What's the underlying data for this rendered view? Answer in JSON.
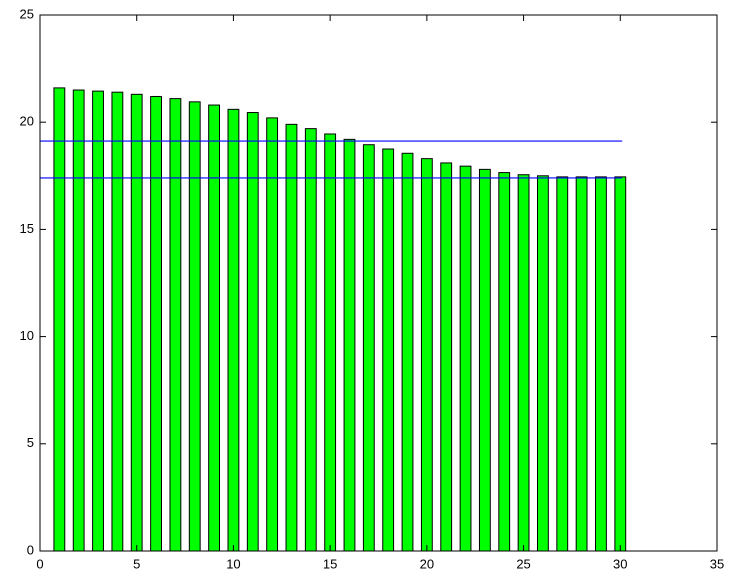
{
  "chart_data": {
    "type": "bar",
    "x": [
      1,
      2,
      3,
      4,
      5,
      6,
      7,
      8,
      9,
      10,
      11,
      12,
      13,
      14,
      15,
      16,
      17,
      18,
      19,
      20,
      21,
      22,
      23,
      24,
      25,
      26,
      27,
      28,
      29,
      30
    ],
    "values": [
      21.6,
      21.5,
      21.45,
      21.4,
      21.3,
      21.2,
      21.1,
      20.95,
      20.8,
      20.6,
      20.45,
      20.2,
      19.9,
      19.7,
      19.45,
      19.2,
      18.95,
      18.75,
      18.55,
      18.3,
      18.1,
      17.95,
      17.8,
      17.65,
      17.55,
      17.5,
      17.45,
      17.45,
      17.45,
      17.45
    ],
    "color": "#00ff00",
    "hlines": [
      {
        "value": 19.12,
        "xlim": [
          0,
          30.1
        ],
        "color": "#0000ff"
      },
      {
        "value": 17.4,
        "xlim": [
          0,
          30.1
        ],
        "color": "#0000ff"
      }
    ],
    "xlim": [
      0,
      35
    ],
    "xticks": [
      0,
      5,
      10,
      15,
      20,
      25,
      30,
      35
    ],
    "ylim": [
      0,
      25
    ],
    "yticks": [
      0,
      5,
      10,
      15,
      20,
      25
    ],
    "grid": false
  }
}
